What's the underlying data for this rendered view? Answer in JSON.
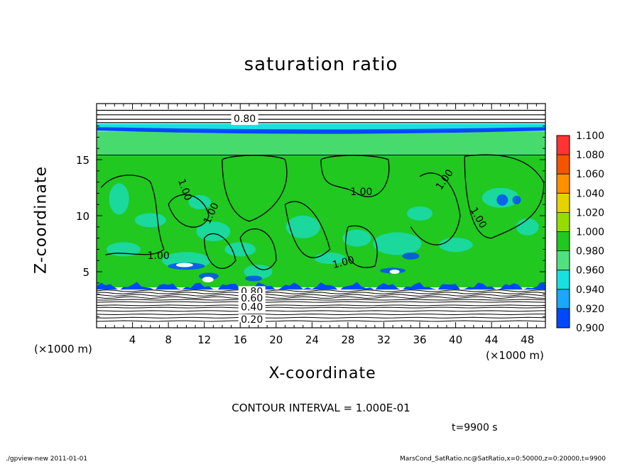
{
  "chart_data": {
    "type": "contour",
    "title": "saturation ratio",
    "xlabel": "X-coordinate",
    "ylabel": "Z-coordinate",
    "x_unit": "(×1000 m)",
    "z_unit": "(×1000 m)",
    "xlim": [
      0,
      50
    ],
    "ylim": [
      0,
      20
    ],
    "x_ticks": [
      4,
      8,
      12,
      16,
      20,
      24,
      28,
      32,
      36,
      40,
      44,
      48
    ],
    "y_ticks": [
      5,
      10,
      15
    ],
    "colorbar": {
      "levels": [
        "1.100",
        "1.080",
        "1.060",
        "1.040",
        "1.020",
        "1.000",
        "0.980",
        "0.960",
        "0.940",
        "0.920",
        "0.900"
      ],
      "colors": [
        "#ff8c8c",
        "#ff3333",
        "#f55500",
        "#ff9000",
        "#e6d200",
        "#96dc00",
        "#20c820",
        "#50e080",
        "#18e0e0",
        "#18a8ff",
        "#0048ff",
        "#0010c0",
        "#7000b0"
      ]
    },
    "contour_labels": [
      "0.80",
      "1.00",
      "1.00",
      "1.00",
      "1.00",
      "1.00",
      "1.00",
      "1.00",
      "0.80",
      "0.60",
      "0.40",
      "0.20"
    ],
    "contour_interval": "CONTOUR INTERVAL = 1.000E-01",
    "time": "t=9900 s"
  },
  "footer": {
    "left": "./gpview-new   2011-01-01",
    "right": "MarsCond_SatRatio.nc@SatRatio,x=0:50000,z=0:20000,t=9900"
  },
  "colors": {
    "field_green": "#20c820",
    "light_green": "#50e080",
    "band_blue": "#0048ff"
  }
}
